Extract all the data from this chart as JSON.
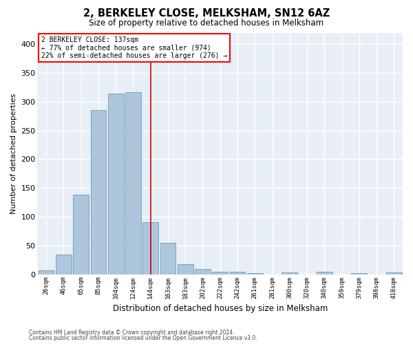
{
  "title": "2, BERKELEY CLOSE, MELKSHAM, SN12 6AZ",
  "subtitle": "Size of property relative to detached houses in Melksham",
  "xlabel": "Distribution of detached houses by size in Melksham",
  "ylabel": "Number of detached properties",
  "bar_color": "#aec6dc",
  "bar_edge_color": "#6699bb",
  "background_color": "#e8eef5",
  "grid_color": "#ffffff",
  "categories": [
    "26sqm",
    "46sqm",
    "65sqm",
    "85sqm",
    "104sqm",
    "124sqm",
    "144sqm",
    "163sqm",
    "183sqm",
    "202sqm",
    "222sqm",
    "242sqm",
    "261sqm",
    "281sqm",
    "300sqm",
    "320sqm",
    "340sqm",
    "359sqm",
    "379sqm",
    "398sqm",
    "418sqm"
  ],
  "values": [
    7,
    34,
    138,
    285,
    314,
    316,
    90,
    55,
    17,
    9,
    4,
    4,
    2,
    0,
    3,
    0,
    4,
    0,
    2,
    0,
    3
  ],
  "ylim": [
    0,
    420
  ],
  "yticks": [
    0,
    50,
    100,
    150,
    200,
    250,
    300,
    350,
    400
  ],
  "property_label": "2 BERKELEY CLOSE: 137sqm",
  "annotation_line1": "← 77% of detached houses are smaller (974)",
  "annotation_line2": "22% of semi-detached houses are larger (276) →",
  "vline_position": 6.0,
  "vline_color": "#cc0000",
  "footer_line1": "Contains HM Land Registry data © Crown copyright and database right 2024.",
  "footer_line2": "Contains public sector information licensed under the Open Government Licence v3.0."
}
